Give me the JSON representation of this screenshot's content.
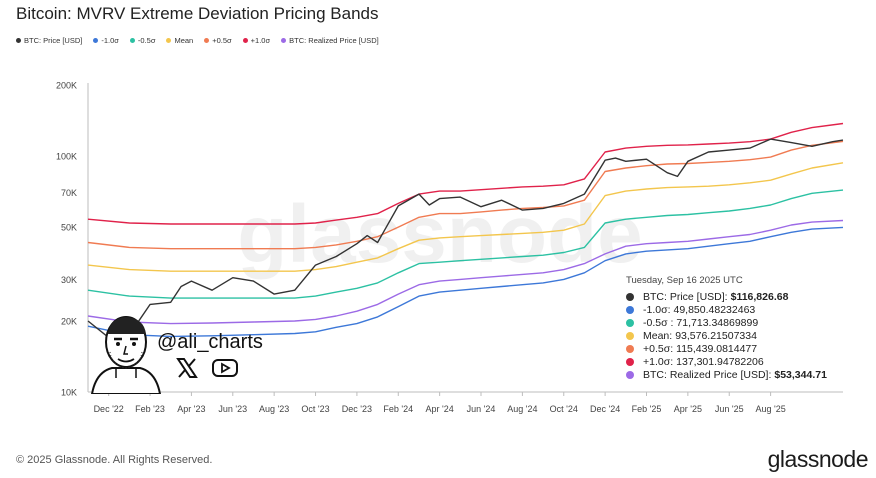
{
  "title": "Bitcoin: MVRV Extreme Deviation Pricing Bands",
  "legend": [
    {
      "label": "BTC: Price [USD]",
      "color": "#333333"
    },
    {
      "label": "-1.0σ",
      "color": "#3d78d8"
    },
    {
      "label": "-0.5σ",
      "color": "#2cc1a3"
    },
    {
      "label": "Mean",
      "color": "#f3c64d"
    },
    {
      "label": "+0.5σ",
      "color": "#f07b52"
    },
    {
      "label": "+1.0σ",
      "color": "#e0224a"
    },
    {
      "label": "BTC: Realized Price [USD]",
      "color": "#9c6ae6"
    }
  ],
  "watermark": "glassnode",
  "tooltip": {
    "date": "Tuesday, Sep 16 2025 UTC",
    "rows": [
      {
        "label": "BTC: Price [USD]:",
        "value": "$116,826.68",
        "color": "#333333",
        "bold": true
      },
      {
        "label": "-1.0σ:",
        "value": "49,850.48232463",
        "color": "#3d78d8",
        "bold": false
      },
      {
        "label": "-0.5σ :",
        "value": "71,713.34869899",
        "color": "#2cc1a3",
        "bold": false
      },
      {
        "label": "Mean:",
        "value": "93,576.21507334",
        "color": "#f3c64d",
        "bold": false
      },
      {
        "label": "+0.5σ:",
        "value": "115,439.0814477",
        "color": "#f07b52",
        "bold": false
      },
      {
        "label": "+1.0σ:",
        "value": "137,301.94782206",
        "color": "#e0224a",
        "bold": false
      },
      {
        "label": "BTC: Realized Price [USD]:",
        "value": "$53,344.71",
        "color": "#9c6ae6",
        "bold": true
      }
    ]
  },
  "overlay": {
    "handle": "@ali_charts"
  },
  "footer": {
    "copyright": "© 2025 Glassnode. All Rights Reserved.",
    "brand": "glassnode"
  },
  "chart_data": {
    "type": "line",
    "title": "Bitcoin: MVRV Extreme Deviation Pricing Bands",
    "yscale": "log",
    "ylim": [
      10000,
      200000
    ],
    "y_ticks": [
      10000,
      20000,
      30000,
      50000,
      70000,
      100000,
      200000
    ],
    "y_tick_labels": [
      "10K",
      "20K",
      "30K",
      "50K",
      "70K",
      "100K",
      "200K"
    ],
    "xlim": [
      0,
      36.5
    ],
    "x_ticks": [
      1,
      3,
      5,
      7,
      9,
      11,
      13,
      15,
      17,
      19,
      21,
      23,
      25,
      27,
      29,
      31,
      33
    ],
    "x_tick_labels": [
      "Dec '22",
      "Feb '23",
      "Apr '23",
      "Jun '23",
      "Aug '23",
      "Oct '23",
      "Dec '23",
      "Feb '24",
      "Apr '24",
      "Jun '24",
      "Aug '24",
      "Oct '24",
      "Dec '24",
      "Feb '25",
      "Apr '25",
      "Jun '25",
      "Aug '25"
    ],
    "x_unit": "months since Nov 1 2022",
    "series": [
      {
        "name": "+1.0σ",
        "color": "#e0224a",
        "x": [
          0,
          2,
          4,
          6,
          8,
          10,
          11,
          12,
          13,
          14,
          15,
          16,
          17,
          18,
          19,
          20,
          21,
          22,
          23,
          24,
          25,
          26,
          27,
          28,
          29,
          30,
          31,
          32,
          33,
          34,
          35,
          36.5
        ],
        "y": [
          54000,
          52000,
          51500,
          51500,
          51500,
          51500,
          52000,
          53500,
          55000,
          57000,
          63000,
          69000,
          71000,
          71000,
          72000,
          73000,
          74000,
          74500,
          75500,
          80000,
          104000,
          108000,
          110000,
          111000,
          111500,
          112500,
          113500,
          115000,
          118000,
          126000,
          132000,
          137300
        ]
      },
      {
        "name": "+0.5σ",
        "color": "#f07b52",
        "x": [
          0,
          2,
          4,
          6,
          8,
          10,
          11,
          12,
          13,
          14,
          15,
          16,
          17,
          18,
          19,
          20,
          21,
          22,
          23,
          24,
          25,
          26,
          27,
          28,
          29,
          30,
          31,
          32,
          33,
          34,
          35,
          36.5
        ],
        "y": [
          43000,
          41000,
          40500,
          40500,
          40500,
          40500,
          41000,
          42000,
          43500,
          45500,
          50000,
          55000,
          57000,
          57000,
          58000,
          59000,
          60000,
          60500,
          61500,
          65000,
          86000,
          89000,
          91000,
          92500,
          93000,
          94000,
          95000,
          96500,
          99000,
          106000,
          111000,
          115400
        ]
      },
      {
        "name": "Mean",
        "color": "#f3c64d",
        "x": [
          0,
          2,
          4,
          6,
          8,
          10,
          11,
          12,
          13,
          14,
          15,
          16,
          17,
          18,
          19,
          20,
          21,
          22,
          23,
          24,
          25,
          26,
          27,
          28,
          29,
          30,
          31,
          32,
          33,
          34,
          35,
          36.5
        ],
        "y": [
          34500,
          33000,
          32500,
          32500,
          32500,
          32500,
          33000,
          34000,
          35500,
          37000,
          40500,
          44000,
          45000,
          45500,
          46000,
          46500,
          47000,
          47500,
          48500,
          51500,
          68000,
          71000,
          72500,
          73500,
          74000,
          74500,
          75500,
          77000,
          79000,
          84000,
          89000,
          93600
        ]
      },
      {
        "name": "-0.5σ",
        "color": "#2cc1a3",
        "x": [
          0,
          2,
          4,
          6,
          8,
          10,
          11,
          12,
          13,
          14,
          15,
          16,
          17,
          18,
          19,
          20,
          21,
          22,
          23,
          24,
          25,
          26,
          27,
          28,
          29,
          30,
          31,
          32,
          33,
          34,
          35,
          36.5
        ],
        "y": [
          27000,
          25500,
          25000,
          25000,
          25000,
          25000,
          25500,
          26500,
          27500,
          29000,
          32000,
          35000,
          35500,
          36000,
          36500,
          37000,
          37500,
          38000,
          39000,
          41000,
          52000,
          54000,
          55000,
          56000,
          56500,
          57500,
          58500,
          60000,
          62000,
          66000,
          69500,
          71700
        ]
      },
      {
        "name": "BTC: Realized Price [USD]",
        "color": "#9c6ae6",
        "x": [
          0,
          2,
          4,
          6,
          8,
          10,
          11,
          12,
          13,
          14,
          15,
          16,
          17,
          18,
          19,
          20,
          21,
          22,
          23,
          24,
          25,
          26,
          27,
          28,
          29,
          30,
          31,
          32,
          33,
          34,
          35,
          36.5
        ],
        "y": [
          21000,
          19800,
          19500,
          19600,
          19800,
          20000,
          20300,
          21000,
          22000,
          23500,
          26000,
          28500,
          29500,
          30000,
          30500,
          31000,
          31500,
          32000,
          33000,
          35000,
          38500,
          41500,
          42500,
          43000,
          43500,
          44500,
          45500,
          46500,
          48500,
          51000,
          52500,
          53300
        ]
      },
      {
        "name": "-1.0σ",
        "color": "#3d78d8",
        "x": [
          0,
          2,
          4,
          6,
          8,
          10,
          11,
          12,
          13,
          14,
          15,
          16,
          17,
          18,
          19,
          20,
          21,
          22,
          23,
          24,
          25,
          26,
          27,
          28,
          29,
          30,
          31,
          32,
          33,
          34,
          35,
          36.5
        ],
        "y": [
          19000,
          17500,
          17200,
          17300,
          17500,
          17700,
          18000,
          18800,
          19500,
          20800,
          23000,
          25500,
          26500,
          27000,
          27500,
          28000,
          28500,
          29000,
          30000,
          32000,
          36000,
          38500,
          39500,
          40000,
          40500,
          41500,
          42500,
          43500,
          45500,
          47500,
          49000,
          49850
        ]
      },
      {
        "name": "BTC: Price [USD]",
        "color": "#333333",
        "x": [
          0,
          1,
          2,
          3,
          4,
          4.5,
          5,
          6,
          7,
          8,
          9,
          10,
          11,
          12,
          13,
          13.5,
          14,
          15,
          16,
          16.5,
          17,
          18,
          19,
          20,
          21,
          22,
          23,
          24,
          25,
          25.5,
          26,
          27,
          28,
          28.5,
          29,
          30,
          31,
          32,
          33,
          34,
          35,
          36,
          36.5
        ],
        "y": [
          20000,
          17000,
          17500,
          23500,
          24000,
          28000,
          29500,
          27000,
          30500,
          29500,
          26000,
          27000,
          34500,
          37500,
          42500,
          46000,
          43000,
          61500,
          69000,
          62000,
          66000,
          67000,
          61000,
          65000,
          59000,
          60000,
          63000,
          69000,
          96000,
          98000,
          95000,
          97000,
          85000,
          82000,
          95000,
          104000,
          106000,
          108000,
          118000,
          114000,
          110000,
          115000,
          116800
        ]
      }
    ]
  }
}
